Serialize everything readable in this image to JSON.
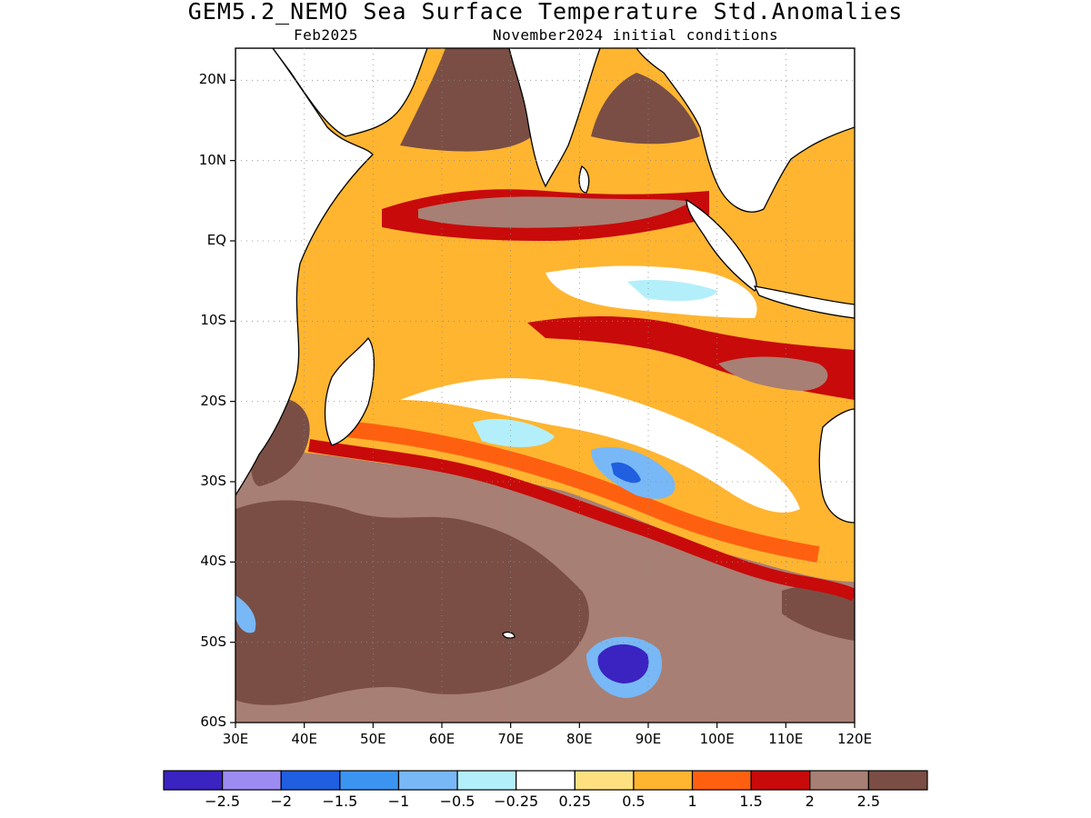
{
  "title": "GEM5.2_NEMO Sea Surface Temperature Std.Anomalies",
  "subtitle_left": "Feb2025",
  "subtitle_right": "November2024 initial conditions",
  "map": {
    "lon_range": [
      30,
      120
    ],
    "lat_range": [
      -60,
      24
    ],
    "lat_ticks": [
      {
        "value": 20,
        "label": "20N"
      },
      {
        "value": 10,
        "label": "10N"
      },
      {
        "value": 0,
        "label": "EQ"
      },
      {
        "value": -10,
        "label": "10S"
      },
      {
        "value": -20,
        "label": "20S"
      },
      {
        "value": -30,
        "label": "30S"
      },
      {
        "value": -40,
        "label": "40S"
      },
      {
        "value": -50,
        "label": "50S"
      },
      {
        "value": -60,
        "label": "60S"
      }
    ],
    "lon_ticks": [
      {
        "value": 30,
        "label": "30E"
      },
      {
        "value": 40,
        "label": "40E"
      },
      {
        "value": 50,
        "label": "50E"
      },
      {
        "value": 60,
        "label": "60E"
      },
      {
        "value": 70,
        "label": "70E"
      },
      {
        "value": 80,
        "label": "80E"
      },
      {
        "value": 90,
        "label": "90E"
      },
      {
        "value": 100,
        "label": "100E"
      },
      {
        "value": 110,
        "label": "110E"
      },
      {
        "value": 120,
        "label": "120E"
      }
    ],
    "grid": "dotted"
  },
  "colorbar": {
    "colors": [
      "#3a23c0",
      "#9c8cf2",
      "#1f5fe0",
      "#3b95f0",
      "#78b8f6",
      "#b3effa",
      "#ffffff",
      "#ffe080",
      "#ffb530",
      "#ff6010",
      "#c80a0a",
      "#a87f74",
      "#7a4e44"
    ],
    "labels": [
      "−2.5",
      "−2",
      "−1.5",
      "−1",
      "−0.5",
      "−0.25",
      "0.25",
      "0.5",
      "1",
      "1.5",
      "2",
      "2.5"
    ]
  }
}
